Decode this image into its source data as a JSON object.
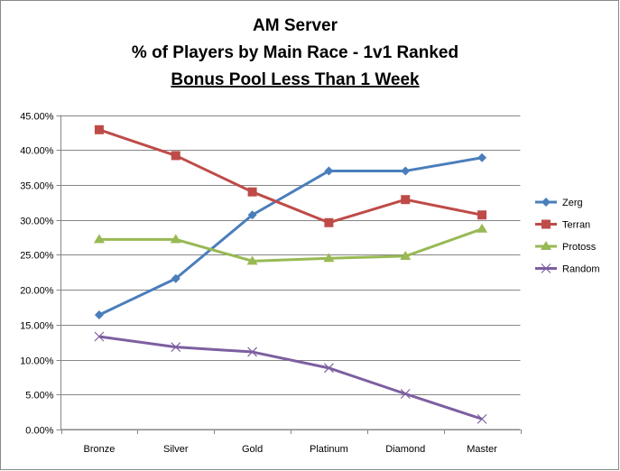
{
  "chart_data": {
    "type": "line",
    "title": [
      "AM Server",
      "% of Players by Main Race - 1v1 Ranked",
      "Bonus Pool Less Than 1 Week"
    ],
    "xlabel": "",
    "ylabel": "",
    "ylim": [
      0,
      45
    ],
    "yticks": [
      0,
      5,
      10,
      15,
      20,
      25,
      30,
      35,
      40,
      45
    ],
    "ytick_labels": [
      "0.00%",
      "5.00%",
      "10.00%",
      "15.00%",
      "20.00%",
      "25.00%",
      "30.00%",
      "35.00%",
      "40.00%",
      "45.00%"
    ],
    "grid": true,
    "legend_position": "right",
    "categories": [
      "Bronze",
      "Silver",
      "Gold",
      "Platinum",
      "Diamond",
      "Master"
    ],
    "series": [
      {
        "name": "Zerg",
        "color": "#4a7ebb",
        "marker": "diamond",
        "values": [
          16.4,
          21.6,
          30.7,
          37.0,
          37.0,
          38.9
        ]
      },
      {
        "name": "Terran",
        "color": "#be4b48",
        "marker": "square",
        "values": [
          42.9,
          39.2,
          34.0,
          29.6,
          32.9,
          30.7
        ]
      },
      {
        "name": "Protoss",
        "color": "#98b954",
        "marker": "triangle",
        "values": [
          27.2,
          27.2,
          24.1,
          24.5,
          24.8,
          28.7
        ]
      },
      {
        "name": "Random",
        "color": "#7d5fa0",
        "marker": "x",
        "values": [
          13.3,
          11.8,
          11.1,
          8.8,
          5.1,
          1.5
        ]
      }
    ]
  }
}
